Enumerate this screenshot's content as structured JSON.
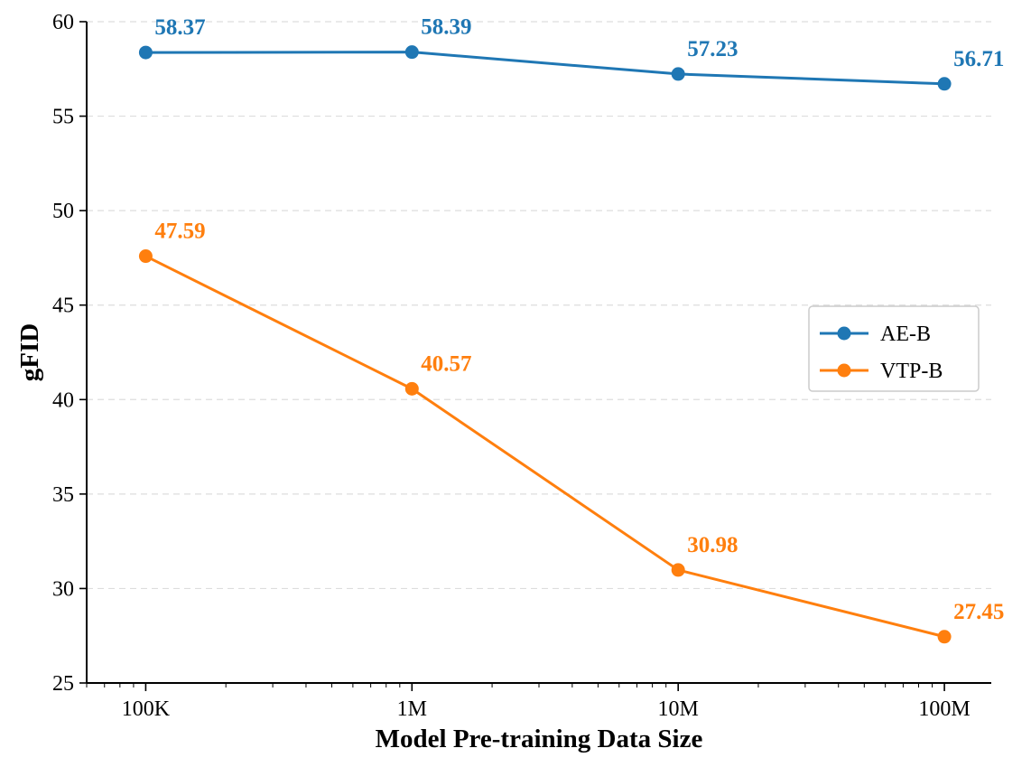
{
  "chart_data": {
    "type": "line",
    "title": "",
    "xlabel": "Model Pre-training Data Size",
    "ylabel": "gFID",
    "x_scale": "log",
    "x": [
      100000,
      1000000,
      10000000,
      100000000
    ],
    "x_tick_labels": [
      "100K",
      "1M",
      "10M",
      "100M"
    ],
    "xlim": [
      60000,
      150000000
    ],
    "ylim": [
      25,
      60
    ],
    "y_ticks": [
      25,
      30,
      35,
      40,
      45,
      50,
      55,
      60
    ],
    "grid": "y-dashed",
    "legend_position": "center-right",
    "series": [
      {
        "name": "AE-B",
        "color": "#1f77b4",
        "values": [
          58.37,
          58.39,
          57.23,
          56.71
        ],
        "labels": [
          "58.37",
          "58.39",
          "57.23",
          "56.71"
        ]
      },
      {
        "name": "VTP-B",
        "color": "#ff7f0e",
        "values": [
          47.59,
          40.57,
          30.98,
          27.45
        ],
        "labels": [
          "47.59",
          "40.57",
          "30.98",
          "27.45"
        ]
      }
    ]
  }
}
